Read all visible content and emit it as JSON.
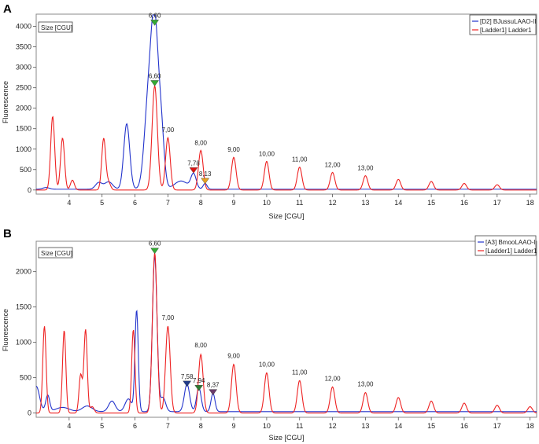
{
  "chart_data": [
    {
      "panel": "A",
      "type": "line",
      "unit_box": "Size [CGU]",
      "xlabel": "Size [CGU]",
      "ylabel": "Fluorescence",
      "xlim": [
        3,
        18.2
      ],
      "ylim": [
        -100,
        4300
      ],
      "xticks": [
        4,
        5,
        6,
        7,
        8,
        9,
        10,
        11,
        12,
        13,
        14,
        15,
        16,
        17,
        18
      ],
      "yticks": [
        0,
        500,
        1000,
        1500,
        2000,
        2500,
        3000,
        3500,
        4000
      ],
      "legend": {
        "position": "top-right",
        "entries": [
          "[D2] BJussuLAAO-II",
          "[Ladder1] Ladder1"
        ]
      },
      "series": [
        {
          "name": "[D2] BJussuLAAO-II",
          "color": "#2233cc",
          "baseline": 20,
          "peaks": [
            [
              3.3,
              40,
              0.1
            ],
            [
              4.9,
              160,
              0.1
            ],
            [
              5.2,
              180,
              0.12
            ],
            [
              5.75,
              1600,
              0.09
            ],
            [
              6.4,
              2000,
              0.12
            ],
            [
              6.6,
              3800,
              0.11
            ],
            [
              6.8,
              1300,
              0.09
            ],
            [
              7.4,
              200,
              0.2
            ],
            [
              7.78,
              360,
              0.08
            ],
            [
              8.13,
              140,
              0.06
            ]
          ]
        },
        {
          "name": "[Ladder1] Ladder1",
          "color": "#ee2222",
          "baseline": 0,
          "peaks": [
            [
              3.5,
              1800,
              0.06
            ],
            [
              3.8,
              1270,
              0.06
            ],
            [
              4.1,
              240,
              0.06
            ],
            [
              5.05,
              1260,
              0.06
            ],
            [
              5.2,
              180,
              0.06
            ],
            [
              6.6,
              2550,
              0.08
            ],
            [
              7.0,
              1280,
              0.07
            ],
            [
              8.0,
              970,
              0.07
            ],
            [
              9.0,
              800,
              0.07
            ],
            [
              10.0,
              700,
              0.07
            ],
            [
              11.0,
              560,
              0.07
            ],
            [
              12.0,
              430,
              0.07
            ],
            [
              13.0,
              350,
              0.07
            ],
            [
              14.0,
              260,
              0.07
            ],
            [
              15.0,
              210,
              0.07
            ],
            [
              16.0,
              160,
              0.07
            ],
            [
              17.0,
              130,
              0.07
            ]
          ]
        }
      ],
      "peak_labels": [
        {
          "text": "6,60",
          "x": 6.6,
          "y": 4100,
          "marker": "#33aa33"
        },
        {
          "text": "6,60",
          "x": 6.6,
          "y": 2620,
          "marker": "#33aa33"
        },
        {
          "text": "7,00",
          "x": 7.0,
          "y": 1300,
          "marker": ""
        },
        {
          "text": "7,78",
          "x": 7.78,
          "y": 490,
          "marker": "#dd1111"
        },
        {
          "text": "8,00",
          "x": 8.0,
          "y": 990,
          "marker": ""
        },
        {
          "text": "8,13",
          "x": 8.13,
          "y": 230,
          "marker": "#e8a020"
        },
        {
          "text": "9,00",
          "x": 9.0,
          "y": 820,
          "marker": ""
        },
        {
          "text": "10,00",
          "x": 10.0,
          "y": 720,
          "marker": ""
        },
        {
          "text": "11,00",
          "x": 11.0,
          "y": 580,
          "marker": ""
        },
        {
          "text": "12,00",
          "x": 12.0,
          "y": 450,
          "marker": ""
        },
        {
          "text": "13,00",
          "x": 13.0,
          "y": 370,
          "marker": ""
        }
      ]
    },
    {
      "panel": "B",
      "type": "line",
      "unit_box": "Size [CGU]",
      "xlabel": "Size [CGU]",
      "ylabel": "Fluorescence",
      "xlim": [
        3,
        18.2
      ],
      "ylim": [
        -60,
        2430
      ],
      "xticks": [
        4,
        5,
        6,
        7,
        8,
        9,
        10,
        11,
        12,
        13,
        14,
        15,
        16,
        17,
        18
      ],
      "yticks": [
        0,
        500,
        1000,
        1500,
        2000
      ],
      "legend": {
        "position": "top-right",
        "entries": [
          "[A3] BmooLAAO-I",
          "[Ladder1] Ladder1"
        ]
      },
      "series": [
        {
          "name": "[A3] BmooLAAO-I",
          "color": "#2233cc",
          "baseline": 20,
          "peaks": [
            [
              3.0,
              360,
              0.1
            ],
            [
              3.35,
              230,
              0.06
            ],
            [
              3.8,
              60,
              0.2
            ],
            [
              4.55,
              80,
              0.15
            ],
            [
              5.3,
              150,
              0.1
            ],
            [
              5.8,
              180,
              0.1
            ],
            [
              6.05,
              1430,
              0.05
            ],
            [
              6.6,
              2200,
              0.07
            ],
            [
              6.85,
              200,
              0.08
            ],
            [
              7.58,
              390,
              0.08
            ],
            [
              7.94,
              340,
              0.07
            ],
            [
              8.37,
              260,
              0.06
            ]
          ]
        },
        {
          "name": "[Ladder1] Ladder1",
          "color": "#ee2222",
          "baseline": 0,
          "peaks": [
            [
              3.25,
              1230,
              0.05
            ],
            [
              3.85,
              1170,
              0.05
            ],
            [
              4.35,
              540,
              0.05
            ],
            [
              4.5,
              1180,
              0.05
            ],
            [
              4.7,
              90,
              0.06
            ],
            [
              5.95,
              1180,
              0.05
            ],
            [
              6.6,
              2270,
              0.07
            ],
            [
              7.0,
              1230,
              0.07
            ],
            [
              8.0,
              830,
              0.07
            ],
            [
              9.0,
              690,
              0.07
            ],
            [
              10.0,
              570,
              0.07
            ],
            [
              11.0,
              460,
              0.07
            ],
            [
              12.0,
              370,
              0.07
            ],
            [
              13.0,
              290,
              0.07
            ],
            [
              14.0,
              220,
              0.07
            ],
            [
              15.0,
              170,
              0.07
            ],
            [
              16.0,
              140,
              0.07
            ],
            [
              17.0,
              110,
              0.07
            ],
            [
              18.0,
              90,
              0.07
            ]
          ]
        }
      ],
      "peak_labels": [
        {
          "text": "6,60",
          "x": 6.6,
          "y": 2300,
          "marker": "#33aa33"
        },
        {
          "text": "7,00",
          "x": 7.0,
          "y": 1250,
          "marker": ""
        },
        {
          "text": "7,58",
          "x": 7.58,
          "y": 420,
          "marker": "#1f3a8a"
        },
        {
          "text": "7,94",
          "x": 7.94,
          "y": 360,
          "marker": "#2f7a2f"
        },
        {
          "text": "8,00",
          "x": 8.0,
          "y": 860,
          "marker": ""
        },
        {
          "text": "8,37",
          "x": 8.37,
          "y": 300,
          "marker": "#6b3b6b"
        },
        {
          "text": "9,00",
          "x": 9.0,
          "y": 710,
          "marker": ""
        },
        {
          "text": "10,00",
          "x": 10.0,
          "y": 590,
          "marker": ""
        },
        {
          "text": "11,00",
          "x": 11.0,
          "y": 480,
          "marker": ""
        },
        {
          "text": "12,00",
          "x": 12.0,
          "y": 390,
          "marker": ""
        },
        {
          "text": "13,00",
          "x": 13.0,
          "y": 310,
          "marker": ""
        }
      ]
    }
  ]
}
